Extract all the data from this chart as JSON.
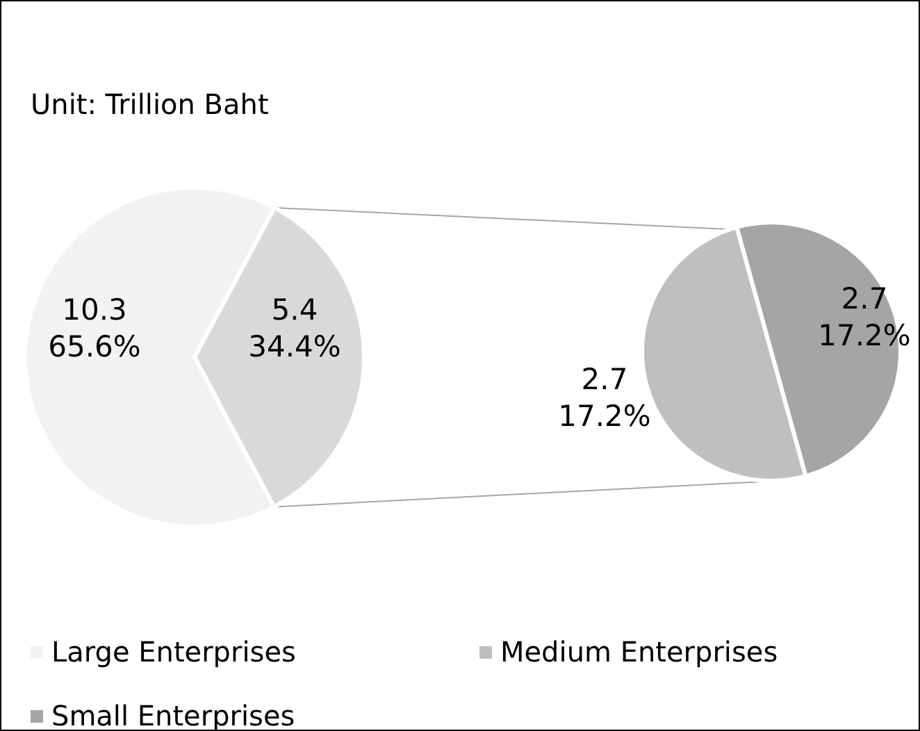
{
  "chart_data": [
    {
      "type": "pie",
      "title": "Unit: Trillion Baht",
      "categories": [
        "Large Enterprises",
        null
      ],
      "values": [
        10.3,
        5.4
      ],
      "colors": [
        "#f2f2f2",
        "#d9d9d9"
      ],
      "value_labels": [
        "10.3\n65.6%",
        "5.4\n34.4%"
      ],
      "legend": "bottom"
    },
    {
      "type": "pie",
      "categories": [
        "Medium Enterprises",
        "Small Enterprises"
      ],
      "values": [
        2.7,
        2.7
      ],
      "colors": [
        "#bfbfbf",
        "#a5a5a5"
      ],
      "value_labels": [
        "2.7\n17.2%",
        "2.7\n17.2%"
      ],
      "legend": "bottom"
    }
  ]
}
